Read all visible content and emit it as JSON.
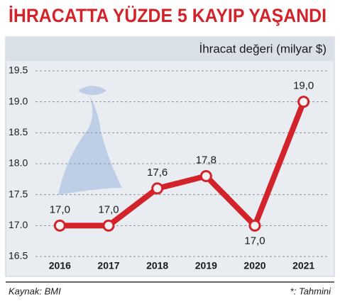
{
  "chart_data": {
    "type": "line",
    "title": "İHRACATTA YÜZDE 5 KAYIP YAŞANDI",
    "subtitle": "İhracat değeri (milyar $)",
    "categories": [
      "2016",
      "2017",
      "2018",
      "2019",
      "2020",
      "2021"
    ],
    "values": [
      17.0,
      17.0,
      17.6,
      17.8,
      17.0,
      19.0
    ],
    "value_labels": [
      "17,0",
      "17,0",
      "17,6",
      "17,8",
      "17,0",
      "19,0"
    ],
    "color": "#d2232a",
    "ylim": [
      16.5,
      19.5
    ],
    "yticks": [
      16.5,
      {
        "value": 17,
        "label": "17.0"
      },
      17.5,
      {
        "value": 18,
        "label": "18.0"
      },
      18.5,
      {
        "value": 19,
        "label": "19.0"
      },
      19.5
    ],
    "grid": true,
    "source": "Kaynak: BMI",
    "note": "*: Tahmini"
  }
}
